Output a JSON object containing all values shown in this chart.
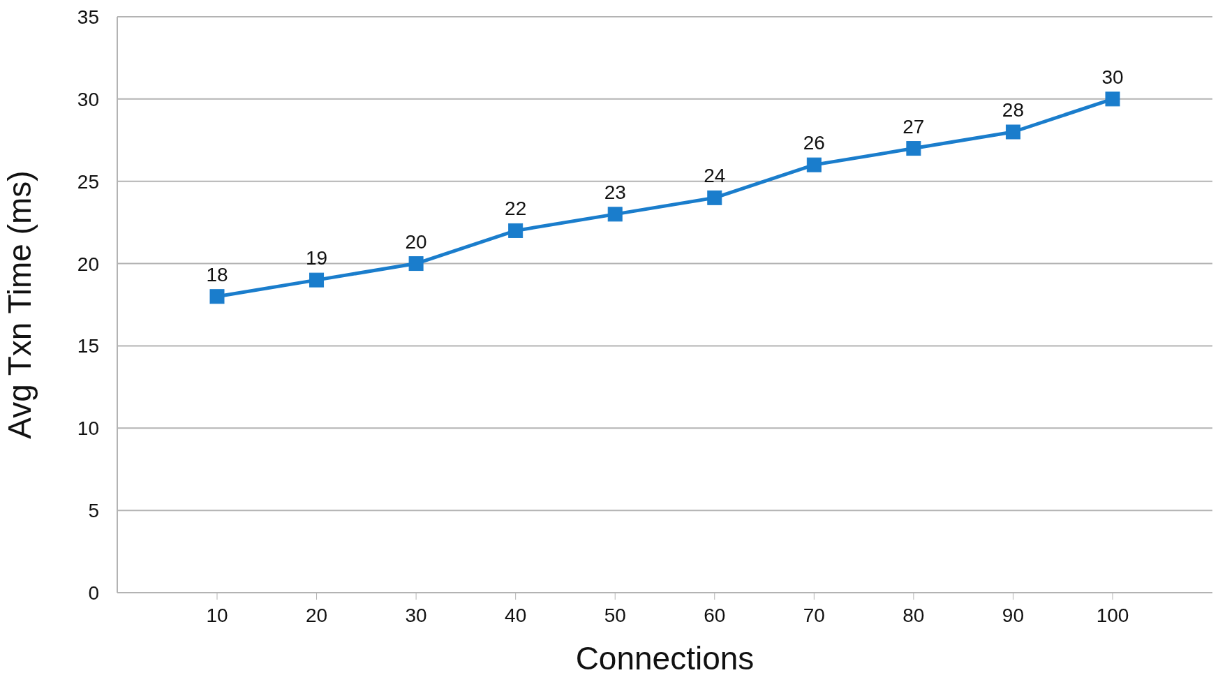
{
  "chart_data": {
    "type": "line",
    "xlabel": "Connections",
    "ylabel": "Avg Txn Time (ms)",
    "categories": [
      "10",
      "20",
      "30",
      "40",
      "50",
      "60",
      "70",
      "80",
      "90",
      "100"
    ],
    "series": [
      {
        "color": "#1a7dcc",
        "values": [
          18,
          19,
          20,
          22,
          23,
          24,
          26,
          27,
          28,
          30
        ]
      }
    ],
    "ylim": [
      0,
      35
    ],
    "yticks": [
      0,
      5,
      10,
      15,
      20,
      25,
      30,
      35
    ],
    "grid": "y",
    "marker": "square",
    "line_style": "solid",
    "data_labels": true
  }
}
